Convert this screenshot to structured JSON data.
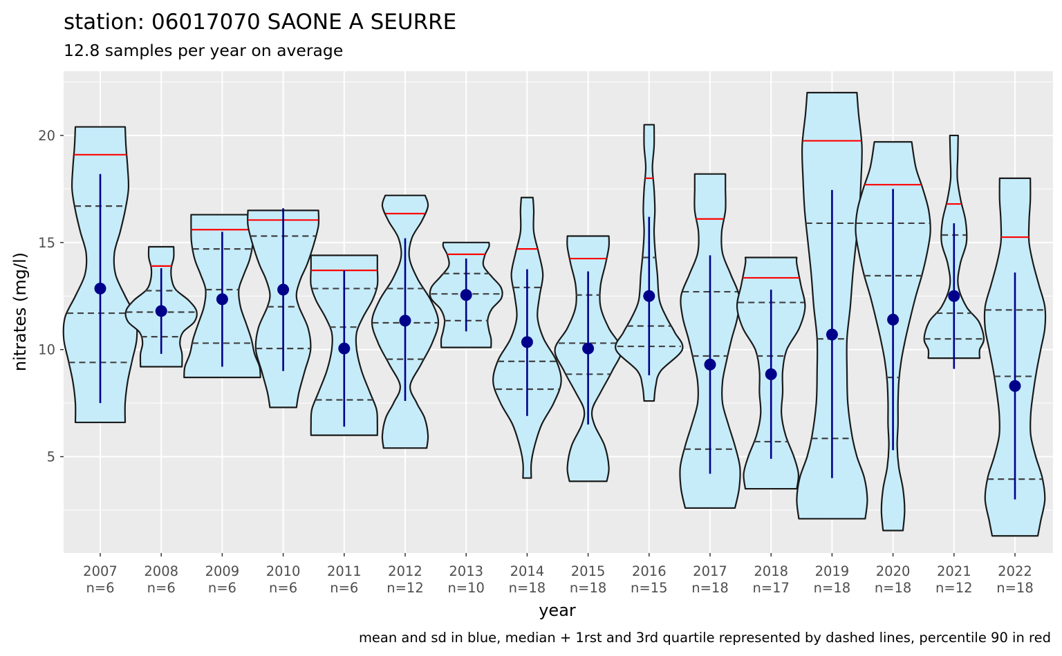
{
  "chart_data": {
    "type": "violin",
    "title": "station: 06017070 SAONE A SEURRE",
    "subtitle": "12.8 samples per year on average",
    "xlabel": "year",
    "ylabel": "nitrates (mg/l)",
    "caption": "mean and sd in blue, median + 1rst and 3rd quartile represented by dashed lines,  percentile 90 in red",
    "ylim": [
      0.5,
      23.0
    ],
    "y_ticks": [
      5,
      10,
      15,
      20
    ],
    "grid": true,
    "colors": {
      "panel": "#ebebeb",
      "grid_major": "#ffffff",
      "violin_fill": "#c6ecfa",
      "violin_outline": "#1a1a1a",
      "quartile_line": "#404040",
      "p90_line": "#ff0000",
      "mean_sd": "#00008b"
    },
    "categories": [
      {
        "year": "2007",
        "n_label": "n=6",
        "min": 6.6,
        "max": 20.4,
        "q1": 9.4,
        "median": 11.7,
        "q3": 16.7,
        "p90": 19.1,
        "mean": 12.85,
        "sd_low": 7.5,
        "sd_high": 18.2,
        "profile": [
          [
            6.6,
            0.6
          ],
          [
            7.5,
            0.6
          ],
          [
            8.5,
            0.66
          ],
          [
            9.5,
            0.77
          ],
          [
            10.5,
            0.88
          ],
          [
            11.5,
            0.85
          ],
          [
            12.5,
            0.6
          ],
          [
            13.5,
            0.37
          ],
          [
            14.5,
            0.34
          ],
          [
            15.5,
            0.48
          ],
          [
            16.5,
            0.6
          ],
          [
            17.5,
            0.68
          ],
          [
            18.5,
            0.66
          ],
          [
            19.5,
            0.62
          ],
          [
            20.4,
            0.6
          ]
        ]
      },
      {
        "year": "2008",
        "n_label": "n=6",
        "min": 9.2,
        "max": 14.8,
        "q1": 10.6,
        "median": 11.75,
        "q3": 12.75,
        "p90": 13.9,
        "mean": 11.8,
        "sd_low": 9.8,
        "sd_high": 13.8,
        "profile": [
          [
            9.2,
            0.5
          ],
          [
            9.8,
            0.5
          ],
          [
            10.3,
            0.45
          ],
          [
            10.8,
            0.52
          ],
          [
            11.3,
            0.8
          ],
          [
            11.8,
            0.85
          ],
          [
            12.3,
            0.66
          ],
          [
            12.8,
            0.35
          ],
          [
            13.3,
            0.25
          ],
          [
            13.8,
            0.24
          ],
          [
            14.3,
            0.3
          ],
          [
            14.8,
            0.3
          ]
        ]
      },
      {
        "year": "2009",
        "n_label": "n=6",
        "min": 8.7,
        "max": 16.3,
        "q1": 10.3,
        "median": 12.8,
        "q3": 14.7,
        "p90": 15.6,
        "mean": 12.35,
        "sd_low": 9.2,
        "sd_high": 15.5,
        "profile": [
          [
            8.7,
            0.92
          ],
          [
            9.2,
            0.9
          ],
          [
            9.8,
            0.78
          ],
          [
            10.5,
            0.7
          ],
          [
            11.2,
            0.58
          ],
          [
            12.0,
            0.44
          ],
          [
            12.8,
            0.4
          ],
          [
            13.5,
            0.52
          ],
          [
            14.2,
            0.66
          ],
          [
            15.0,
            0.74
          ],
          [
            15.7,
            0.75
          ],
          [
            16.3,
            0.75
          ]
        ]
      },
      {
        "year": "2010",
        "n_label": "n=6",
        "min": 7.3,
        "max": 16.5,
        "q1": 10.05,
        "median": 12.0,
        "q3": 15.3,
        "p90": 16.05,
        "mean": 12.8,
        "sd_low": 9.0,
        "sd_high": 16.6,
        "profile": [
          [
            7.3,
            0.32
          ],
          [
            8.0,
            0.38
          ],
          [
            9.0,
            0.52
          ],
          [
            10.0,
            0.66
          ],
          [
            11.0,
            0.6
          ],
          [
            12.0,
            0.38
          ],
          [
            12.6,
            0.32
          ],
          [
            13.3,
            0.42
          ],
          [
            14.0,
            0.58
          ],
          [
            15.0,
            0.75
          ],
          [
            15.8,
            0.85
          ],
          [
            16.5,
            0.85
          ]
        ]
      },
      {
        "year": "2011",
        "n_label": "n=6",
        "min": 6.0,
        "max": 14.4,
        "q1": 7.65,
        "median": 11.05,
        "q3": 12.85,
        "p90": 13.7,
        "mean": 10.05,
        "sd_low": 6.4,
        "sd_high": 13.7,
        "profile": [
          [
            6.0,
            0.8
          ],
          [
            6.5,
            0.8
          ],
          [
            7.2,
            0.78
          ],
          [
            8.0,
            0.62
          ],
          [
            9.0,
            0.42
          ],
          [
            10.0,
            0.3
          ],
          [
            10.8,
            0.3
          ],
          [
            11.5,
            0.45
          ],
          [
            12.3,
            0.68
          ],
          [
            13.0,
            0.8
          ],
          [
            13.8,
            0.8
          ],
          [
            14.4,
            0.8
          ]
        ]
      },
      {
        "year": "2012",
        "n_label": "n=12",
        "min": 5.4,
        "max": 17.2,
        "q1": 9.55,
        "median": 11.25,
        "q3": 12.85,
        "p90": 16.35,
        "mean": 11.35,
        "sd_low": 7.6,
        "sd_high": 15.2,
        "profile": [
          [
            5.4,
            0.52
          ],
          [
            6.0,
            0.55
          ],
          [
            6.8,
            0.47
          ],
          [
            7.5,
            0.28
          ],
          [
            8.3,
            0.12
          ],
          [
            9.3,
            0.38
          ],
          [
            10.3,
            0.65
          ],
          [
            11.3,
            0.8
          ],
          [
            12.3,
            0.62
          ],
          [
            13.3,
            0.3
          ],
          [
            14.3,
            0.1
          ],
          [
            15.2,
            0.16
          ],
          [
            16.0,
            0.4
          ],
          [
            16.7,
            0.55
          ],
          [
            17.2,
            0.48
          ]
        ]
      },
      {
        "year": "2013",
        "n_label": "n=10",
        "min": 10.1,
        "max": 15.0,
        "q1": 11.35,
        "median": 12.6,
        "q3": 13.55,
        "p90": 14.45,
        "mean": 12.55,
        "sd_low": 10.85,
        "sd_high": 14.25,
        "profile": [
          [
            10.1,
            0.6
          ],
          [
            10.5,
            0.6
          ],
          [
            10.9,
            0.55
          ],
          [
            11.4,
            0.52
          ],
          [
            11.9,
            0.62
          ],
          [
            12.4,
            0.85
          ],
          [
            12.9,
            0.84
          ],
          [
            13.4,
            0.62
          ],
          [
            13.9,
            0.42
          ],
          [
            14.4,
            0.45
          ],
          [
            14.8,
            0.55
          ],
          [
            15.0,
            0.55
          ]
        ]
      },
      {
        "year": "2014",
        "n_label": "n=18",
        "min": 4.0,
        "max": 17.1,
        "q1": 8.15,
        "median": 9.45,
        "q3": 12.9,
        "p90": 14.7,
        "mean": 10.35,
        "sd_low": 6.9,
        "sd_high": 13.75,
        "profile": [
          [
            4.0,
            0.1
          ],
          [
            4.7,
            0.1
          ],
          [
            5.5,
            0.18
          ],
          [
            6.5,
            0.35
          ],
          [
            7.5,
            0.64
          ],
          [
            8.5,
            0.82
          ],
          [
            9.5,
            0.7
          ],
          [
            10.5,
            0.4
          ],
          [
            11.5,
            0.25
          ],
          [
            12.5,
            0.3
          ],
          [
            13.5,
            0.38
          ],
          [
            14.5,
            0.28
          ],
          [
            15.5,
            0.16
          ],
          [
            16.5,
            0.16
          ],
          [
            17.1,
            0.14
          ]
        ]
      },
      {
        "year": "2015",
        "n_label": "n=18",
        "min": 3.85,
        "max": 15.3,
        "q1": 8.85,
        "median": 10.3,
        "q3": 12.55,
        "p90": 14.25,
        "mean": 10.05,
        "sd_low": 6.5,
        "sd_high": 13.65,
        "profile": [
          [
            3.85,
            0.45
          ],
          [
            4.5,
            0.5
          ],
          [
            5.5,
            0.4
          ],
          [
            6.5,
            0.15
          ],
          [
            7.2,
            0.1
          ],
          [
            8.0,
            0.3
          ],
          [
            9.0,
            0.58
          ],
          [
            10.0,
            0.8
          ],
          [
            11.0,
            0.5
          ],
          [
            12.0,
            0.3
          ],
          [
            13.0,
            0.3
          ],
          [
            14.0,
            0.42
          ],
          [
            14.8,
            0.5
          ],
          [
            15.3,
            0.5
          ]
        ]
      },
      {
        "year": "2016",
        "n_label": "n=15",
        "min": 7.6,
        "max": 20.5,
        "q1": 10.15,
        "median": 11.1,
        "q3": 14.3,
        "p90": 18.0,
        "mean": 12.5,
        "sd_low": 8.8,
        "sd_high": 16.2,
        "profile": [
          [
            7.6,
            0.12
          ],
          [
            8.3,
            0.16
          ],
          [
            9.0,
            0.28
          ],
          [
            10.0,
            0.8
          ],
          [
            10.8,
            0.62
          ],
          [
            11.5,
            0.42
          ],
          [
            12.3,
            0.25
          ],
          [
            13.5,
            0.2
          ],
          [
            14.5,
            0.15
          ],
          [
            15.5,
            0.12
          ],
          [
            16.5,
            0.14
          ],
          [
            17.5,
            0.12
          ],
          [
            18.5,
            0.08
          ],
          [
            19.5,
            0.12
          ],
          [
            20.5,
            0.12
          ]
        ]
      },
      {
        "year": "2017",
        "n_label": "n=18",
        "min": 2.6,
        "max": 18.2,
        "q1": 5.35,
        "median": 9.7,
        "q3": 12.7,
        "p90": 16.1,
        "mean": 9.3,
        "sd_low": 4.2,
        "sd_high": 14.4,
        "profile": [
          [
            2.6,
            0.6
          ],
          [
            3.5,
            0.7
          ],
          [
            4.5,
            0.72
          ],
          [
            5.5,
            0.6
          ],
          [
            6.5,
            0.44
          ],
          [
            7.5,
            0.3
          ],
          [
            8.5,
            0.3
          ],
          [
            9.5,
            0.4
          ],
          [
            10.5,
            0.52
          ],
          [
            11.5,
            0.66
          ],
          [
            12.5,
            0.7
          ],
          [
            13.5,
            0.5
          ],
          [
            14.5,
            0.3
          ],
          [
            15.5,
            0.28
          ],
          [
            16.5,
            0.37
          ],
          [
            17.5,
            0.37
          ],
          [
            18.2,
            0.37
          ]
        ]
      },
      {
        "year": "2018",
        "n_label": "n=17",
        "min": 3.5,
        "max": 14.3,
        "q1": 5.7,
        "median": 9.7,
        "q3": 12.2,
        "p90": 13.35,
        "mean": 8.85,
        "sd_low": 4.9,
        "sd_high": 12.8,
        "profile": [
          [
            3.5,
            0.62
          ],
          [
            4.2,
            0.66
          ],
          [
            5.0,
            0.55
          ],
          [
            6.0,
            0.35
          ],
          [
            7.0,
            0.25
          ],
          [
            8.0,
            0.28
          ],
          [
            9.0,
            0.28
          ],
          [
            10.0,
            0.38
          ],
          [
            11.0,
            0.68
          ],
          [
            12.0,
            0.82
          ],
          [
            13.0,
            0.72
          ],
          [
            14.0,
            0.62
          ],
          [
            14.3,
            0.62
          ]
        ]
      },
      {
        "year": "2019",
        "n_label": "n=18",
        "min": 2.1,
        "max": 22.0,
        "q1": 5.85,
        "median": 10.5,
        "q3": 15.9,
        "p90": 19.75,
        "mean": 10.7,
        "sd_low": 4.0,
        "sd_high": 17.45,
        "profile": [
          [
            2.1,
            0.8
          ],
          [
            3.0,
            0.85
          ],
          [
            4.0,
            0.78
          ],
          [
            5.0,
            0.6
          ],
          [
            6.0,
            0.48
          ],
          [
            7.5,
            0.38
          ],
          [
            9.0,
            0.36
          ],
          [
            10.5,
            0.36
          ],
          [
            12.0,
            0.44
          ],
          [
            13.5,
            0.5
          ],
          [
            15.0,
            0.58
          ],
          [
            16.5,
            0.66
          ],
          [
            18.0,
            0.7
          ],
          [
            19.5,
            0.72
          ],
          [
            21.0,
            0.64
          ],
          [
            22.0,
            0.6
          ]
        ]
      },
      {
        "year": "2020",
        "n_label": "n=18",
        "min": 1.55,
        "max": 19.7,
        "q1": 8.7,
        "median": 13.45,
        "q3": 15.9,
        "p90": 17.7,
        "mean": 11.4,
        "sd_low": 5.3,
        "sd_high": 17.5,
        "profile": [
          [
            1.55,
            0.24
          ],
          [
            2.5,
            0.28
          ],
          [
            3.5,
            0.24
          ],
          [
            4.5,
            0.14
          ],
          [
            5.5,
            0.1
          ],
          [
            6.5,
            0.12
          ],
          [
            7.5,
            0.12
          ],
          [
            8.5,
            0.14
          ],
          [
            9.5,
            0.2
          ],
          [
            10.5,
            0.3
          ],
          [
            11.5,
            0.42
          ],
          [
            12.5,
            0.55
          ],
          [
            13.5,
            0.7
          ],
          [
            14.5,
            0.82
          ],
          [
            15.5,
            0.9
          ],
          [
            16.5,
            0.86
          ],
          [
            17.5,
            0.72
          ],
          [
            18.5,
            0.55
          ],
          [
            19.7,
            0.45
          ]
        ]
      },
      {
        "year": "2021",
        "n_label": "n=12",
        "min": 9.6,
        "max": 20.0,
        "q1": 10.5,
        "median": 11.7,
        "q3": 15.35,
        "p90": 16.8,
        "mean": 12.5,
        "sd_low": 9.1,
        "sd_high": 15.9,
        "profile": [
          [
            9.6,
            0.62
          ],
          [
            10.0,
            0.62
          ],
          [
            10.5,
            0.72
          ],
          [
            11.3,
            0.6
          ],
          [
            12.0,
            0.3
          ],
          [
            13.0,
            0.1
          ],
          [
            14.0,
            0.15
          ],
          [
            15.0,
            0.3
          ],
          [
            16.0,
            0.28
          ],
          [
            17.0,
            0.16
          ],
          [
            18.0,
            0.08
          ],
          [
            19.0,
            0.09
          ],
          [
            20.0,
            0.1
          ]
        ]
      },
      {
        "year": "2022",
        "n_label": "n=18",
        "min": 1.3,
        "max": 18.0,
        "q1": 3.95,
        "median": 8.75,
        "q3": 11.85,
        "p90": 15.25,
        "mean": 8.3,
        "sd_low": 3.0,
        "sd_high": 13.6,
        "profile": [
          [
            1.3,
            0.55
          ],
          [
            2.0,
            0.62
          ],
          [
            3.0,
            0.72
          ],
          [
            4.0,
            0.66
          ],
          [
            5.0,
            0.5
          ],
          [
            6.0,
            0.38
          ],
          [
            7.0,
            0.38
          ],
          [
            8.0,
            0.44
          ],
          [
            9.0,
            0.52
          ],
          [
            10.0,
            0.62
          ],
          [
            11.0,
            0.72
          ],
          [
            12.0,
            0.72
          ],
          [
            13.0,
            0.58
          ],
          [
            14.0,
            0.44
          ],
          [
            15.0,
            0.34
          ],
          [
            16.0,
            0.34
          ],
          [
            17.0,
            0.37
          ],
          [
            18.0,
            0.37
          ]
        ]
      }
    ]
  }
}
